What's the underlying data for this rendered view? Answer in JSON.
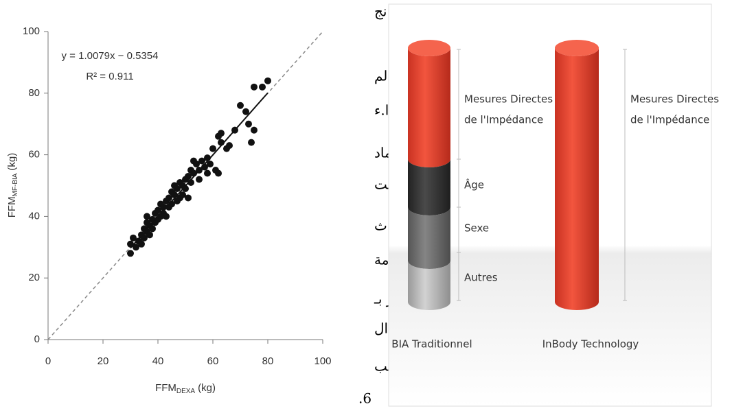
{
  "chart_data": {
    "type": "scatter",
    "x_label": {
      "main": "FFM",
      "sub": "DEXA",
      "unit": "(kg)"
    },
    "y_label": {
      "main": "FFM",
      "sub": "MF-BIA",
      "unit": "(kg)"
    },
    "annotations": [
      "y = 1.0079x − 0.5354",
      "R² = 0.911"
    ],
    "xlim": [
      0,
      100
    ],
    "ylim": [
      0,
      100
    ],
    "xticks": [
      0,
      20,
      40,
      60,
      80,
      100
    ],
    "yticks": [
      0,
      20,
      40,
      60,
      80,
      100
    ],
    "color": "#111111",
    "reference_line": {
      "x": [
        0,
        100
      ],
      "y": [
        0,
        100
      ]
    },
    "fit_line": {
      "x": [
        30,
        80
      ],
      "y": [
        29.7,
        80.1
      ]
    },
    "x": [
      30,
      30,
      31,
      32,
      33,
      34,
      34,
      35,
      35,
      36,
      36,
      36,
      37,
      37,
      38,
      38,
      39,
      39,
      40,
      40,
      41,
      41,
      42,
      42,
      43,
      43,
      44,
      44,
      45,
      45,
      46,
      46,
      47,
      47,
      48,
      48,
      49,
      49,
      50,
      50,
      51,
      51,
      52,
      52,
      53,
      53,
      54,
      55,
      55,
      56,
      57,
      58,
      58,
      59,
      60,
      61,
      62,
      62,
      63,
      63,
      65,
      66,
      68,
      70,
      72,
      73,
      74,
      75,
      75,
      78,
      80
    ],
    "values": [
      28,
      31,
      33,
      30,
      32,
      31,
      34,
      36,
      33,
      38,
      35,
      40,
      34,
      37,
      39,
      36,
      38,
      41,
      39,
      42,
      40,
      44,
      41,
      43,
      45,
      40,
      46,
      43,
      48,
      44,
      47,
      50,
      45,
      49,
      46,
      51,
      50,
      47,
      52,
      49,
      46,
      53,
      55,
      51,
      58,
      54,
      57,
      55,
      52,
      58,
      56,
      59,
      54,
      57,
      62,
      55,
      66,
      54,
      67,
      64,
      62,
      63,
      68,
      76,
      74,
      70,
      64,
      68,
      82,
      82,
      84
    ]
  },
  "middle_text": [
    "نج",
    "الم",
    "ا.ء",
    "ماد",
    "الت",
    "ث",
    "مة",
    "ر بـ",
    "ال",
    "أنب",
    ".6"
  ],
  "diagram": {
    "cylinders": [
      {
        "label": "BIA Traditionnel",
        "notes": [
          [
            "Mesures Directes",
            "de l'Impédance"
          ],
          [
            "Âge"
          ],
          [
            "Sexe"
          ],
          [
            "Autres"
          ]
        ]
      },
      {
        "label": "InBody Technology",
        "notes": [
          [
            "Mesures Directes",
            "de l'Impédance"
          ]
        ]
      }
    ]
  }
}
